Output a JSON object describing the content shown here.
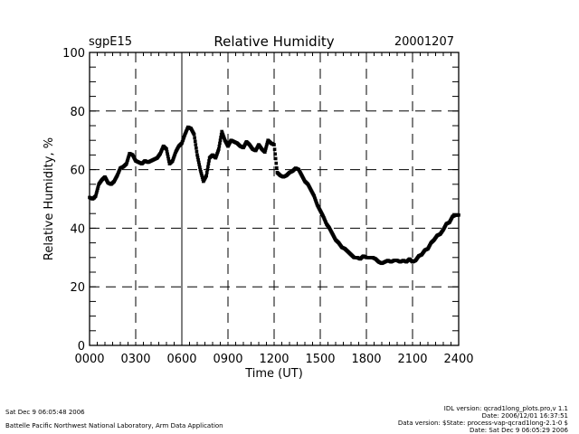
{
  "chart_data": {
    "type": "scatter",
    "site": "sgpE15",
    "title": "Relative Humidity",
    "date": "20001207",
    "xlabel": "Time (UT)",
    "ylabel": "Relative Humidity, %",
    "xlim": [
      0,
      2400
    ],
    "ylim": [
      0,
      100
    ],
    "x_ticks": [
      "0000",
      "0300",
      "0600",
      "0900",
      "1200",
      "1500",
      "1800",
      "2100",
      "2400"
    ],
    "y_ticks": [
      "0",
      "20",
      "40",
      "60",
      "80",
      "100"
    ],
    "grid": "dashed",
    "series": [
      {
        "name": "Relative Humidity",
        "x": [
          0,
          20,
          40,
          60,
          80,
          100,
          120,
          140,
          160,
          180,
          200,
          220,
          240,
          260,
          280,
          300,
          320,
          340,
          360,
          380,
          400,
          420,
          440,
          460,
          480,
          500,
          520,
          540,
          560,
          580,
          600,
          620,
          640,
          660,
          680,
          700,
          720,
          740,
          760,
          780,
          800,
          820,
          840,
          860,
          880,
          900,
          920,
          940,
          960,
          980,
          1000,
          1020,
          1040,
          1060,
          1080,
          1100,
          1120,
          1140,
          1160,
          1180,
          1200,
          1220,
          1240,
          1260,
          1280,
          1300,
          1320,
          1340,
          1360,
          1380,
          1400,
          1420,
          1440,
          1460,
          1480,
          1500,
          1520,
          1540,
          1560,
          1580,
          1600,
          1620,
          1640,
          1660,
          1680,
          1700,
          1720,
          1740,
          1760,
          1780,
          1800,
          1820,
          1840,
          1860,
          1880,
          1900,
          1920,
          1940,
          1960,
          1980,
          2000,
          2020,
          2040,
          2060,
          2080,
          2100,
          2120,
          2140,
          2160,
          2180,
          2200,
          2220,
          2240,
          2260,
          2280,
          2300,
          2320,
          2340,
          2360,
          2380,
          2400
        ],
        "y": [
          50.5,
          50,
          51,
          55,
          56.5,
          57.5,
          55.5,
          55,
          56,
          58,
          60.5,
          61,
          62,
          65.5,
          65,
          63,
          62.5,
          62,
          63,
          62.5,
          63,
          63.5,
          64,
          65.5,
          68,
          67,
          62,
          63,
          66,
          68,
          69,
          72,
          74.5,
          74,
          72,
          65,
          60,
          56,
          58,
          64,
          65,
          64,
          67,
          73,
          70,
          68,
          70,
          69.5,
          69,
          68,
          67.5,
          69.5,
          68.5,
          67,
          66.5,
          68.5,
          67,
          66,
          70,
          69,
          68.5,
          59,
          58,
          57.5,
          58,
          59,
          59.5,
          60.5,
          60,
          58,
          56,
          55,
          53,
          51,
          48,
          46,
          44,
          41.5,
          40,
          38,
          36,
          35,
          33.5,
          33,
          32,
          31,
          30,
          30,
          29.5,
          30.5,
          30,
          30,
          30,
          29.5,
          28.5,
          28,
          28.5,
          29,
          28.5,
          29,
          29,
          28.5,
          29,
          28.5,
          29.5,
          28.5,
          29,
          30.5,
          31,
          32.5,
          33,
          35,
          36,
          37.5,
          38,
          39.5,
          41.5,
          42,
          44,
          44.5,
          44.5
        ]
      }
    ]
  },
  "footer": {
    "timestamp": "Sat Dec  9 06:05:48 2006",
    "credit": "Battelle Pacific Northwest National Laboratory, Arm Data Application",
    "idl_version": "IDL version: qcrad1long_plots.pro,v 1.1",
    "code_date": "Date: 2006/12/01 16:37:51",
    "data_version": "Data version: $State: process-vap-qcrad1long-2.1-0 $",
    "data_date": "Date: Sat Dec  9 06:05:29 2006"
  }
}
